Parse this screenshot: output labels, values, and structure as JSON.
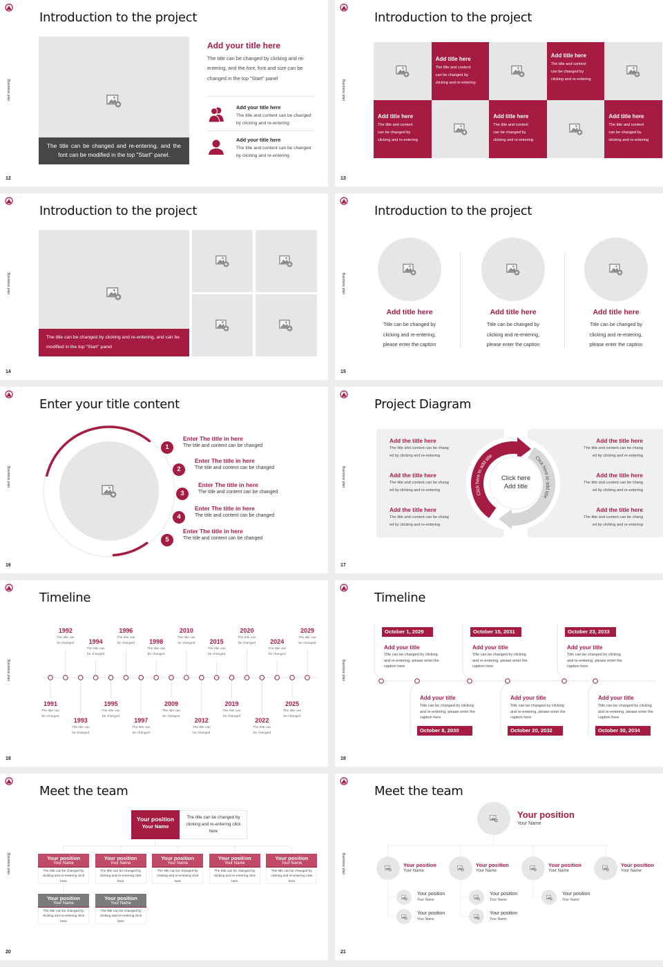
{
  "colors": {
    "accent": "#a61b42",
    "placeholder": "#e6e6e6",
    "dark_caption": "#474747",
    "team_member": "#c04a68",
    "team_gray": "#7b7b7b"
  },
  "common": {
    "side_label": "Business plan",
    "logo_icon": "emblem-icon",
    "image_icon": "image-placeholder-icon"
  },
  "slides": [
    {
      "number": "12",
      "title": "Introduction to the project",
      "caption": "The title can be changed and re-entering, and the font can be modified in the top \"Start\" panel.",
      "heading": "Add your title here",
      "body": "The title can be changed by clicking and re-entering, and the font, font and size can be changed in the top \"Start\" panel",
      "items": [
        {
          "icon": "people-icon",
          "title": "Add your title here",
          "body": "The title and content can be changed by clicking and re-entering"
        },
        {
          "icon": "person-icon",
          "title": "Add your title here",
          "body": "The title and content can be changed by clicking and re-entering"
        }
      ]
    },
    {
      "number": "13",
      "title": "Introduction to the project",
      "cards": [
        {
          "title": "Add title here",
          "body": "The title and content can be changed by clicking and re-entering"
        },
        {
          "title": "Add title here",
          "body": "The title and content can be changed by clicking and re-entering"
        },
        {
          "title": "Add title here",
          "body": "The title and content can be changed by clicking and re-entering"
        },
        {
          "title": "Add title here",
          "body": "The title and content can be changed by clicking and re-entering"
        },
        {
          "title": "Add title here",
          "body": "The title and content can be changed by clicking and re-entering"
        }
      ]
    },
    {
      "number": "14",
      "title": "Introduction to the project",
      "caption": "The title can be changed by clicking and re-entering, and can be modified in the top \"Start\" panel"
    },
    {
      "number": "15",
      "title": "Introduction to the project",
      "columns": [
        {
          "title": "Add title here",
          "body": [
            "Title can be changed by",
            "clicking and re-entering,",
            "please enter the caption"
          ]
        },
        {
          "title": "Add title here",
          "body": [
            "Title can be changed by",
            "clicking and re-entering,",
            "please enter the caption"
          ]
        },
        {
          "title": "Add title here",
          "body": [
            "Title can be changed by",
            "clicking and re-entering,",
            "please enter the caption"
          ]
        }
      ]
    },
    {
      "number": "16",
      "title": "Enter your title content",
      "items": [
        {
          "num": "1",
          "title": "Enter The title in here",
          "body": "The title and content can be changed"
        },
        {
          "num": "2",
          "title": "Enter The title in here",
          "body": "The title and content can be changed"
        },
        {
          "num": "3",
          "title": "Enter The title in here",
          "body": "The title and content can be changed"
        },
        {
          "num": "4",
          "title": "Enter The title in here",
          "body": "The title and content can be changed"
        },
        {
          "num": "5",
          "title": "Enter The title in here",
          "body": "The title and content can be changed"
        }
      ]
    },
    {
      "number": "17",
      "title": "Project Diagram",
      "center": [
        "Click here",
        "Add title"
      ],
      "arrow_left": "Click here to add title",
      "arrow_right": "Click here to add title",
      "left": [
        {
          "title": "Add the title here",
          "body": [
            "The title and content can be chang",
            "ed by clicking and re-entering"
          ]
        },
        {
          "title": "Add the title here",
          "body": [
            "The title and content can be chang",
            "ed by clicking and re-entering"
          ]
        },
        {
          "title": "Add the title here",
          "body": [
            "The title and content can be chang",
            "ed by clicking and re-entering"
          ]
        }
      ],
      "right": [
        {
          "title": "Add the title here",
          "body": [
            "The title and content can be chang",
            "ed by clicking and re-entering"
          ]
        },
        {
          "title": "Add the title here",
          "body": [
            "The title and content can be chang",
            "ed by clicking and re-entering"
          ]
        },
        {
          "title": "Add the title here",
          "body": [
            "The title and content can be chang",
            "ed by clicking and re-entering"
          ]
        }
      ]
    },
    {
      "number": "18",
      "title": "Timeline",
      "events": [
        {
          "year": "1991",
          "text": "The title can be changed"
        },
        {
          "year": "1992",
          "text": "The title can be changed"
        },
        {
          "year": "1993",
          "text": "The title can be changed"
        },
        {
          "year": "1994",
          "text": "The title can be changed"
        },
        {
          "year": "1995",
          "text": "The title can be changed"
        },
        {
          "year": "1996",
          "text": "The title can be changed"
        },
        {
          "year": "1997",
          "text": "The title can be changed"
        },
        {
          "year": "1998",
          "text": "The title can be changed"
        },
        {
          "year": "2009",
          "text": "The title can be changed"
        },
        {
          "year": "2010",
          "text": "The title can be changed"
        },
        {
          "year": "2012",
          "text": "The title can be changed"
        },
        {
          "year": "2015",
          "text": "The title can be changed"
        },
        {
          "year": "2019",
          "text": "The title can be changed"
        },
        {
          "year": "2020",
          "text": "The title can be changed"
        },
        {
          "year": "2022",
          "text": "The title can be changed"
        },
        {
          "year": "2024",
          "text": "The title can be changed"
        },
        {
          "year": "2025",
          "text": "The title can be changed"
        },
        {
          "year": "2029",
          "text": "The title can be changed"
        }
      ]
    },
    {
      "number": "19",
      "title": "Timeline",
      "entries": [
        {
          "date": "October 1, 2029",
          "title": "Add your title",
          "body": "Title can be changed by clicking and re-entering, please enter the caption here"
        },
        {
          "date": "October 8, 2030",
          "title": "Add your title",
          "body": "Title can be changed by clicking and re-entering, please enter the caption here"
        },
        {
          "date": "October 15, 2031",
          "title": "Add your title",
          "body": "Title can be changed by clicking and re-entering, please enter the caption here"
        },
        {
          "date": "October 20, 2032",
          "title": "Add your title",
          "body": "Title can be changed by clicking and re-entering, please enter the caption here"
        },
        {
          "date": "October 23, 2033",
          "title": "Add your title",
          "body": "Title can be changed by clicking and re-entering, please enter the caption here"
        },
        {
          "date": "October 30, 2034",
          "title": "Add your title",
          "body": "Title can be changed by clicking and re-entering, please enter the caption here"
        }
      ]
    },
    {
      "number": "20",
      "title": "Meet the team",
      "lead": {
        "position": "Your position",
        "name": "Your Name",
        "note": "The title can be changed by clicking and re-entering click here"
      },
      "members": [
        {
          "position": "Your position",
          "name": "Your Name",
          "note": "The title can be changed by clicking and re-entering click here"
        },
        {
          "position": "Your position",
          "name": "Your Name",
          "note": "The title can be changed by clicking and re-entering click here"
        },
        {
          "position": "Your position",
          "name": "Your Name",
          "note": "The title can be changed by clicking and re-entering click here"
        },
        {
          "position": "Your position",
          "name": "Your Name",
          "note": "The title can be changed by clicking and re-entering click here"
        },
        {
          "position": "Your position",
          "name": "Your Name",
          "note": "The title can be changed by clicking and re-entering click here"
        },
        {
          "position": "Your position",
          "name": "Your Name",
          "note": "The title can be changed by clicking and re-entering click here"
        },
        {
          "position": "Your position",
          "name": "Your Name",
          "note": "The title can be changed by clicking and re-entering click here"
        }
      ]
    },
    {
      "number": "21",
      "title": "Meet the team",
      "lead": {
        "position": "Your position",
        "name": "Your Name"
      },
      "managers": [
        {
          "position": "Your position",
          "name": "Your Name"
        },
        {
          "position": "Your position",
          "name": "Your Name"
        },
        {
          "position": "Your position",
          "name": "Your Name"
        },
        {
          "position": "Your position",
          "name": "Your Name"
        }
      ],
      "staff": [
        {
          "position": "Your position",
          "name": "Your Name"
        },
        {
          "position": "Your position",
          "name": "Your Name"
        },
        {
          "position": "Your position",
          "name": "Your Name"
        },
        {
          "position": "Your position",
          "name": "Your Name"
        },
        {
          "position": "Your position",
          "name": "Your Name"
        }
      ]
    }
  ]
}
